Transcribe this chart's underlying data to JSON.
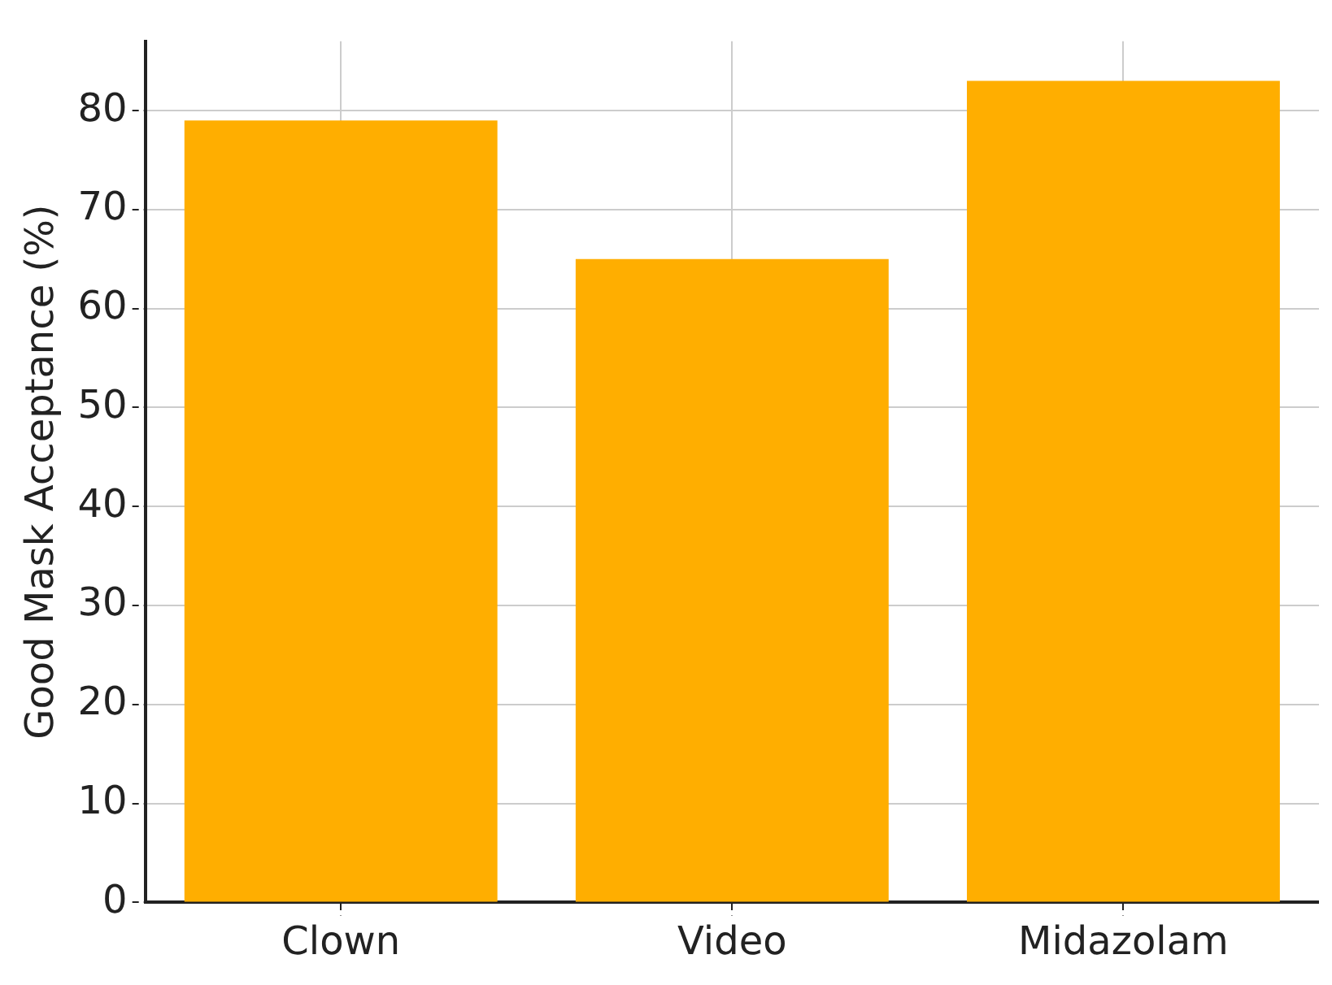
{
  "chart_data": {
    "type": "bar",
    "ylabel": "Good Mask Acceptance (%)",
    "categories": [
      "Clown",
      "Video",
      "Midazolam"
    ],
    "values": [
      79,
      65,
      83
    ],
    "color": "#ffae00",
    "ylim": [
      0,
      87
    ],
    "yticks": [
      0,
      10,
      20,
      30,
      40,
      50,
      60,
      70,
      80
    ],
    "grid": true
  }
}
